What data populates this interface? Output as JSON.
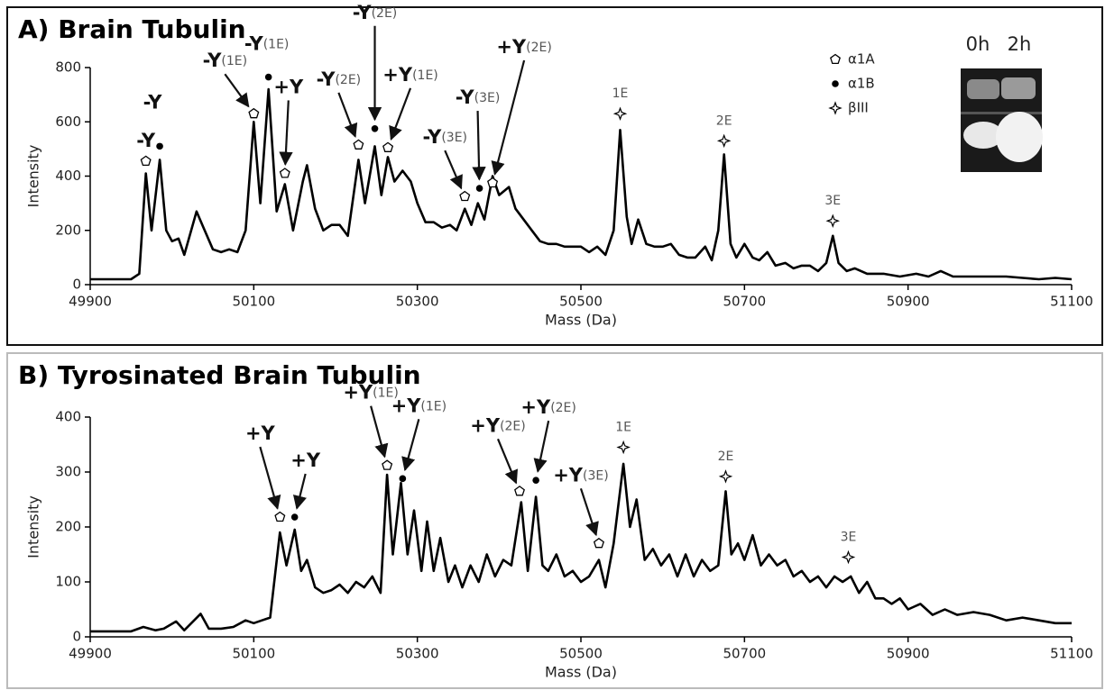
{
  "chart_data": [
    {
      "type": "line",
      "title": "A) Brain Tubulin",
      "xlabel": "Mass (Da)",
      "ylabel": "Intensity",
      "color": "#000000",
      "xlim": [
        49900,
        51100
      ],
      "xticks": [
        49900,
        50100,
        50300,
        50500,
        50700,
        50900,
        51100
      ],
      "ylim": [
        0,
        800
      ],
      "yticks": [
        0,
        200,
        400,
        600,
        800
      ],
      "x": [
        49900,
        49950,
        49960,
        49968,
        49975,
        49985,
        49993,
        50000,
        50008,
        50015,
        50030,
        50040,
        50050,
        50060,
        50070,
        50080,
        50090,
        50100,
        50108,
        50118,
        50128,
        50138,
        50148,
        50160,
        50165,
        50175,
        50185,
        50195,
        50205,
        50215,
        50228,
        50236,
        50248,
        50256,
        50264,
        50272,
        50282,
        50292,
        50300,
        50310,
        50320,
        50330,
        50340,
        50348,
        50358,
        50366,
        50374,
        50382,
        50392,
        50400,
        50412,
        50420,
        50430,
        50440,
        50450,
        50460,
        50470,
        50480,
        50490,
        50500,
        50510,
        50520,
        50530,
        50540,
        50548,
        50556,
        50562,
        50570,
        50580,
        50590,
        50600,
        50610,
        50620,
        50630,
        50640,
        50652,
        50660,
        50668,
        50675,
        50683,
        50690,
        50700,
        50710,
        50718,
        50728,
        50738,
        50750,
        50760,
        50770,
        50780,
        50790,
        50800,
        50808,
        50815,
        50825,
        50835,
        50850,
        50870,
        50890,
        50910,
        50925,
        50940,
        50955,
        50975,
        51000,
        51020,
        51040,
        51060,
        51080,
        51100
      ],
      "values": [
        20,
        20,
        40,
        410,
        200,
        460,
        200,
        160,
        170,
        110,
        270,
        200,
        130,
        120,
        130,
        120,
        200,
        600,
        300,
        720,
        270,
        370,
        200,
        380,
        440,
        280,
        200,
        220,
        220,
        180,
        460,
        300,
        510,
        330,
        470,
        380,
        420,
        380,
        300,
        230,
        230,
        210,
        220,
        200,
        280,
        220,
        300,
        240,
        400,
        330,
        360,
        280,
        240,
        200,
        160,
        150,
        150,
        140,
        140,
        140,
        120,
        140,
        110,
        200,
        570,
        250,
        150,
        240,
        150,
        140,
        140,
        150,
        110,
        100,
        100,
        140,
        90,
        200,
        480,
        150,
        100,
        150,
        100,
        90,
        120,
        70,
        80,
        60,
        70,
        70,
        50,
        80,
        180,
        80,
        50,
        60,
        40,
        40,
        30,
        40,
        30,
        50,
        30,
        30,
        30,
        30,
        25,
        20,
        25,
        20
      ],
      "annotations": [
        {
          "symbol": "pentagon",
          "x": 49968,
          "y": 455,
          "label": "-Y"
        },
        {
          "symbol": "dot",
          "x": 49985,
          "y": 510,
          "label": "-Y"
        },
        {
          "symbol": "pentagon",
          "x": 50100,
          "y": 630,
          "label": "-Y",
          "sublabel": "(1E)"
        },
        {
          "symbol": "dot",
          "x": 50118,
          "y": 765,
          "label": "-Y",
          "sublabel": "(1E)"
        },
        {
          "symbol": "pentagon",
          "x": 50138,
          "y": 410,
          "label": "+Y"
        },
        {
          "symbol": "pentagon",
          "x": 50228,
          "y": 515,
          "label": "-Y",
          "sublabel": "(2E)"
        },
        {
          "symbol": "dot",
          "x": 50248,
          "y": 575,
          "label": "-Y",
          "sublabel": "(2E)"
        },
        {
          "symbol": "pentagon",
          "x": 50264,
          "y": 505,
          "label": "+Y",
          "sublabel": "(1E)"
        },
        {
          "symbol": "pentagon",
          "x": 50358,
          "y": 325,
          "label": "-Y",
          "sublabel": "(3E)"
        },
        {
          "symbol": "dot",
          "x": 50376,
          "y": 355,
          "label": "-Y",
          "sublabel": "(3E)"
        },
        {
          "symbol": "pentagon",
          "x": 50392,
          "y": 375,
          "label": "+Y",
          "sublabel": "(2E)"
        },
        {
          "symbol": "star",
          "x": 50548,
          "y": 630,
          "sublabel": "1E"
        },
        {
          "symbol": "star",
          "x": 50675,
          "y": 530,
          "sublabel": "2E"
        },
        {
          "symbol": "star",
          "x": 50808,
          "y": 235,
          "sublabel": "3E"
        }
      ],
      "legend": [
        {
          "symbol": "pentagon",
          "label": "α1A"
        },
        {
          "symbol": "dot",
          "label": "α1B"
        },
        {
          "symbol": "star",
          "label": "βIII"
        }
      ],
      "inset": {
        "labels": [
          "0h",
          "2h"
        ]
      }
    },
    {
      "type": "line",
      "title": "B) Tyrosinated Brain Tubulin",
      "xlabel": "Mass (Da)",
      "ylabel": "Intensity",
      "color": "#000000",
      "xlim": [
        49900,
        51100
      ],
      "xticks": [
        49900,
        50100,
        50300,
        50500,
        50700,
        50900,
        51100
      ],
      "ylim": [
        0,
        400
      ],
      "yticks": [
        0,
        100,
        200,
        300,
        400
      ],
      "x": [
        49900,
        49950,
        49965,
        49980,
        49990,
        50005,
        50015,
        50035,
        50045,
        50060,
        50075,
        50090,
        50100,
        50110,
        50120,
        50132,
        50140,
        50150,
        50158,
        50165,
        50175,
        50185,
        50195,
        50205,
        50215,
        50225,
        50235,
        50245,
        50255,
        50263,
        50270,
        50280,
        50288,
        50296,
        50305,
        50312,
        50320,
        50328,
        50338,
        50346,
        50355,
        50365,
        50375,
        50385,
        50395,
        50405,
        50415,
        50427,
        50435,
        50445,
        50453,
        50460,
        50470,
        50480,
        50490,
        50500,
        50510,
        50522,
        50530,
        50540,
        50552,
        50560,
        50568,
        50578,
        50588,
        50598,
        50608,
        50618,
        50628,
        50638,
        50648,
        50658,
        50668,
        50677,
        50684,
        50692,
        50700,
        50710,
        50720,
        50730,
        50740,
        50750,
        50760,
        50770,
        50780,
        50790,
        50800,
        50810,
        50820,
        50830,
        50840,
        50850,
        50860,
        50870,
        50880,
        50890,
        50900,
        50915,
        50930,
        50945,
        50960,
        50980,
        51000,
        51020,
        51040,
        51060,
        51080,
        51100
      ],
      "values": [
        10,
        10,
        18,
        12,
        15,
        28,
        12,
        42,
        15,
        15,
        18,
        30,
        25,
        30,
        35,
        190,
        130,
        195,
        120,
        140,
        90,
        80,
        85,
        95,
        80,
        100,
        90,
        110,
        80,
        295,
        150,
        280,
        150,
        230,
        120,
        210,
        120,
        180,
        100,
        130,
        90,
        130,
        100,
        150,
        110,
        140,
        130,
        245,
        120,
        255,
        130,
        120,
        150,
        110,
        120,
        100,
        110,
        140,
        90,
        170,
        315,
        200,
        250,
        140,
        160,
        130,
        150,
        110,
        150,
        110,
        140,
        120,
        130,
        265,
        150,
        170,
        140,
        185,
        130,
        150,
        130,
        140,
        110,
        120,
        100,
        110,
        90,
        110,
        100,
        110,
        80,
        100,
        70,
        70,
        60,
        70,
        50,
        60,
        40,
        50,
        40,
        45,
        40,
        30,
        35,
        30,
        25,
        25
      ],
      "annotations": [
        {
          "symbol": "pentagon",
          "x": 50132,
          "y": 218,
          "label": "+Y"
        },
        {
          "symbol": "dot",
          "x": 50150,
          "y": 218,
          "label": "+Y"
        },
        {
          "symbol": "pentagon",
          "x": 50263,
          "y": 312,
          "label": "+Y",
          "sublabel": "(1E)"
        },
        {
          "symbol": "dot",
          "x": 50282,
          "y": 288,
          "label": "+Y",
          "sublabel": "(1E)"
        },
        {
          "symbol": "pentagon",
          "x": 50425,
          "y": 265,
          "label": "+Y",
          "sublabel": "(2E)"
        },
        {
          "symbol": "dot",
          "x": 50445,
          "y": 285,
          "label": "+Y",
          "sublabel": "(2E)"
        },
        {
          "symbol": "pentagon",
          "x": 50522,
          "y": 170,
          "label": "+Y",
          "sublabel": "(3E)"
        },
        {
          "symbol": "star",
          "x": 50552,
          "y": 345,
          "sublabel": "1E"
        },
        {
          "symbol": "star",
          "x": 50677,
          "y": 292,
          "sublabel": "2E"
        },
        {
          "symbol": "star",
          "x": 50827,
          "y": 145,
          "sublabel": "3E"
        }
      ]
    }
  ]
}
